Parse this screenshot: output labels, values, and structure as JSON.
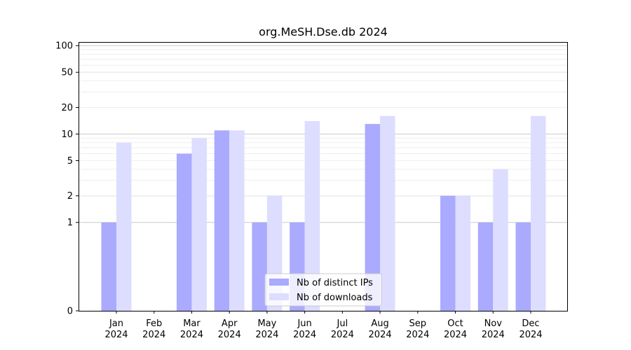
{
  "chart_data": {
    "type": "bar",
    "title": "org.MeSH.Dse.db 2024",
    "xlabel": "",
    "ylabel": "",
    "y_scale": "symlog",
    "ylim": [
      0,
      110
    ],
    "yticks": [
      0,
      1,
      2,
      5,
      10,
      20,
      50,
      100
    ],
    "grid": "horizontal",
    "legend_position": "lower center",
    "categories": [
      [
        "Jan",
        "2024"
      ],
      [
        "Feb",
        "2024"
      ],
      [
        "Mar",
        "2024"
      ],
      [
        "Apr",
        "2024"
      ],
      [
        "May",
        "2024"
      ],
      [
        "Jun",
        "2024"
      ],
      [
        "Jul",
        "2024"
      ],
      [
        "Aug",
        "2024"
      ],
      [
        "Sep",
        "2024"
      ],
      [
        "Oct",
        "2024"
      ],
      [
        "Nov",
        "2024"
      ],
      [
        "Dec",
        "2024"
      ]
    ],
    "series": [
      {
        "name": "Nb of distinct IPs",
        "color": "#aaaaff",
        "values": [
          1,
          0,
          6,
          11,
          1,
          1,
          0,
          13,
          0,
          2,
          1,
          1
        ]
      },
      {
        "name": "Nb of downloads",
        "color": "#ddddff",
        "values": [
          8,
          0,
          9,
          11,
          2,
          14,
          0,
          16,
          0,
          2,
          4,
          16
        ]
      }
    ]
  }
}
